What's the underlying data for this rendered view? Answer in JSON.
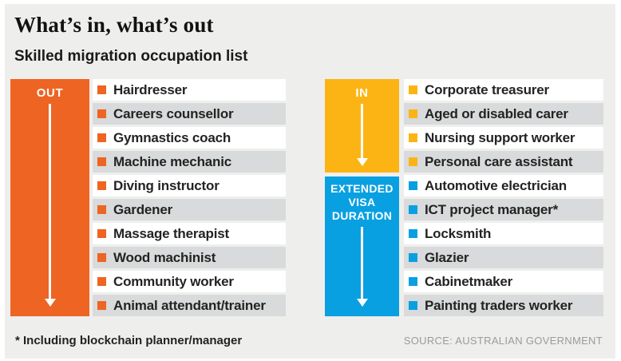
{
  "header": {
    "title": "What’s in, what’s out",
    "subtitle": "Skilled migration occupation list"
  },
  "out_column": {
    "label": "OUT",
    "color": "#ee6423",
    "items": [
      "Hairdresser",
      "Careers counsellor",
      "Gymnastics coach",
      "Machine mechanic",
      "Diving instructor",
      "Gardener",
      "Massage therapist",
      "Wood machinist",
      "Community worker",
      "Animal attendant/trainer"
    ]
  },
  "in_column": {
    "label": "IN",
    "color": "#fcb415",
    "items": [
      "Corporate treasurer",
      "Aged or disabled carer",
      "Nursing support worker",
      "Personal care assistant"
    ]
  },
  "extended_column": {
    "label": "EXTENDED VISA DURATION",
    "color": "#09a0e1",
    "items": [
      "Automotive electrician",
      "ICT project manager*",
      "Locksmith",
      "Glazier",
      "Cabinetmaker",
      "Painting traders worker"
    ]
  },
  "footer": {
    "footnote": "* Including blockchain planner/manager",
    "source": "SOURCE: AUSTRALIAN GOVERNMENT"
  },
  "colors": {
    "panel_background": "#eeeeed",
    "row_white": "#ffffff",
    "row_gray": "#d8dadb",
    "arrow_white": "#ffffff",
    "text_dark": "#232323",
    "source_gray": "#9b9b9b"
  }
}
